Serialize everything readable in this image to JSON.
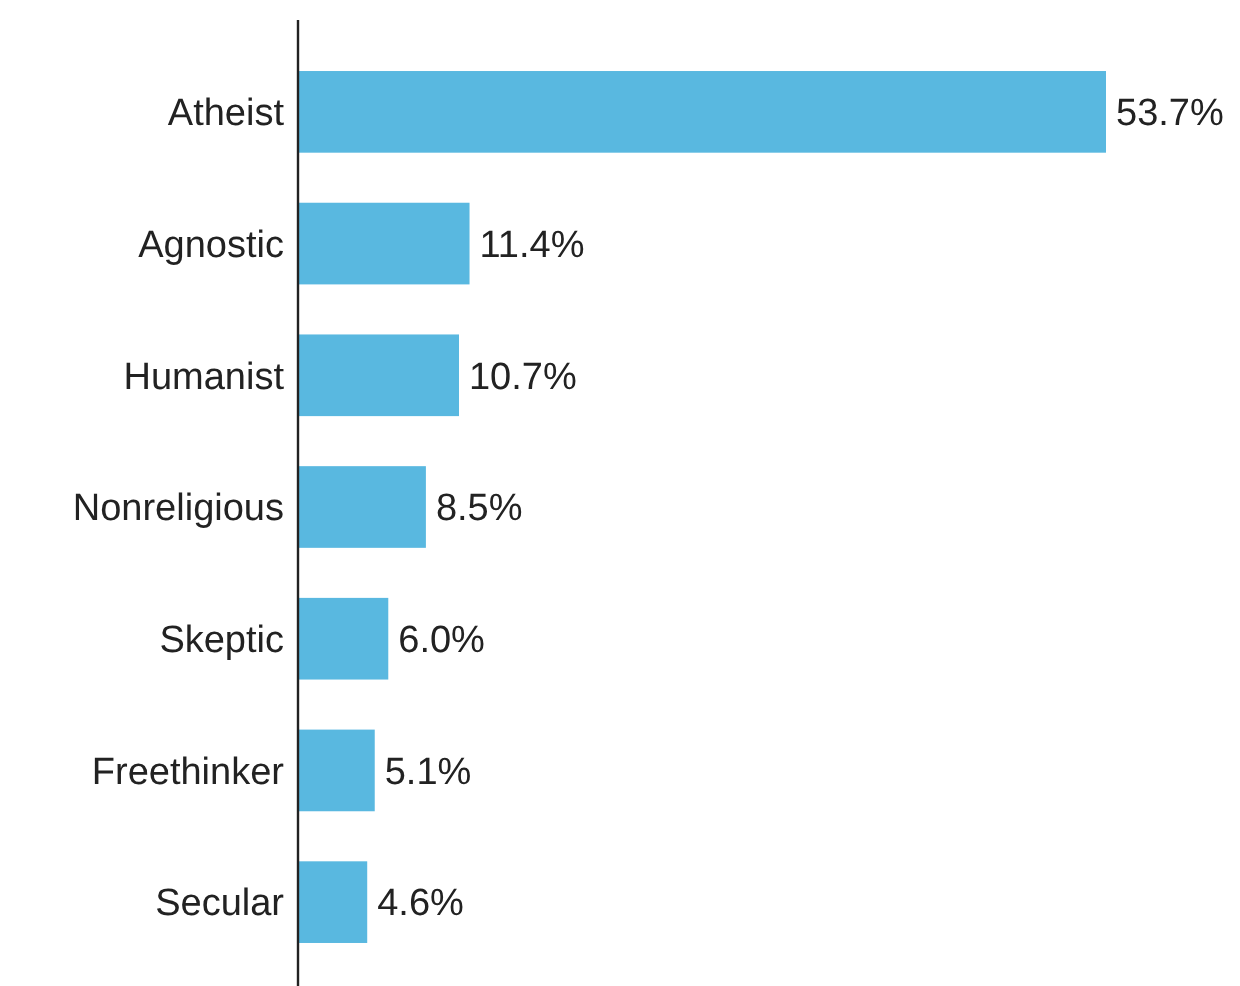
{
  "chart_data": {
    "type": "bar",
    "orientation": "horizontal",
    "categories": [
      "Atheist",
      "Agnostic",
      "Humanist",
      "Nonreligious",
      "Skeptic",
      "Freethinker",
      "Secular"
    ],
    "values": [
      53.7,
      11.4,
      10.7,
      8.5,
      6.0,
      5.1,
      4.6
    ],
    "value_labels": [
      "53.7%",
      "11.4%",
      "10.7%",
      "8.5%",
      "6.0%",
      "5.1%",
      "4.6%"
    ],
    "color": "#59b8e0",
    "xlim": [
      0,
      53.7
    ]
  }
}
